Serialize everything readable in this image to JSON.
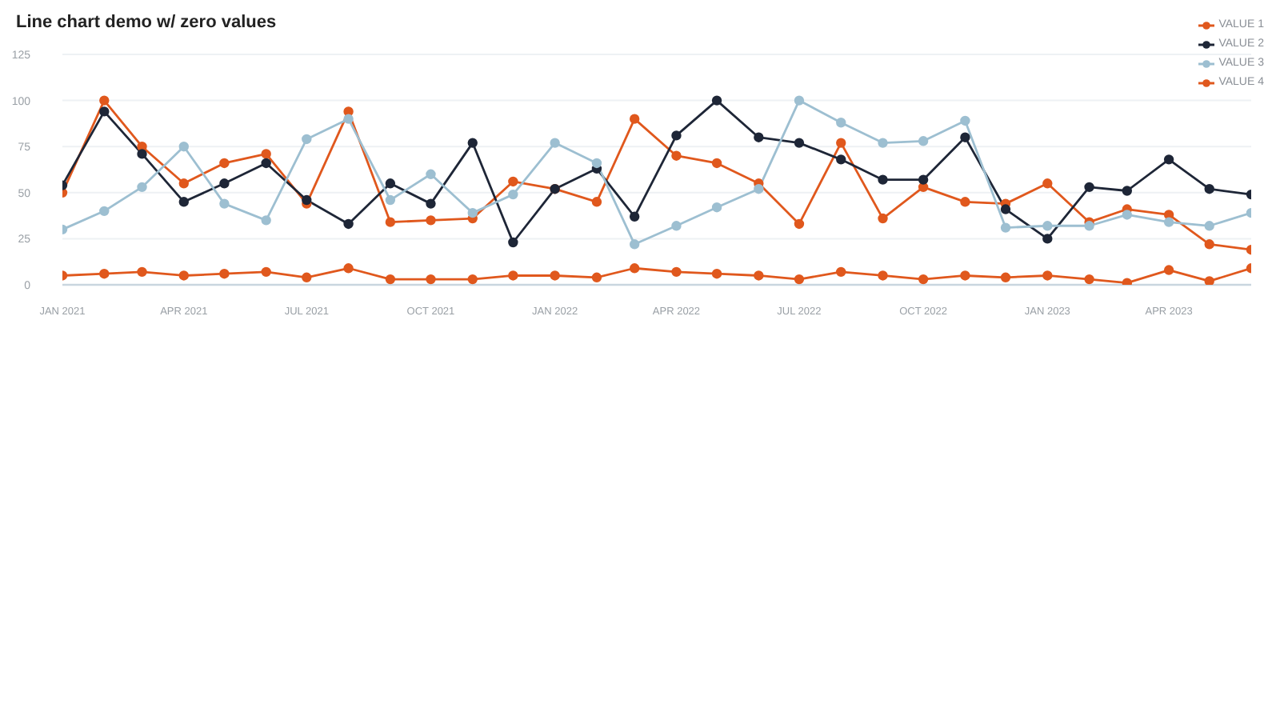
{
  "chart_data": {
    "type": "line",
    "title": "Line chart demo w/ zero values",
    "x": [
      "2021-01",
      "2021-02",
      "2021-03",
      "2021-04",
      "2021-05",
      "2021-06",
      "2021-07",
      "2021-08",
      "2021-09",
      "2021-10",
      "2021-11",
      "2021-12",
      "2022-01",
      "2022-02",
      "2022-03",
      "2022-04",
      "2022-05",
      "2022-06",
      "2022-07",
      "2022-08",
      "2022-09",
      "2022-10",
      "2022-11",
      "2022-12",
      "2023-01",
      "2023-02",
      "2023-03",
      "2023-04",
      "2023-05",
      "2023-06"
    ],
    "xlim": [
      "2021-01",
      "2023-06"
    ],
    "xticks": [
      {
        "value": "2021-01",
        "label": "JAN 2021"
      },
      {
        "value": "2021-04",
        "label": "APR 2021"
      },
      {
        "value": "2021-07",
        "label": "JUL 2021"
      },
      {
        "value": "2021-10",
        "label": "OCT 2021"
      },
      {
        "value": "2022-01",
        "label": "JAN 2022"
      },
      {
        "value": "2022-04",
        "label": "APR 2022"
      },
      {
        "value": "2022-07",
        "label": "JUL 2022"
      },
      {
        "value": "2022-10",
        "label": "OCT 2022"
      },
      {
        "value": "2023-01",
        "label": "JAN 2023"
      },
      {
        "value": "2023-04",
        "label": "APR 2023"
      }
    ],
    "ylim": [
      0,
      125
    ],
    "yticks": [
      0,
      25,
      50,
      75,
      100,
      125
    ],
    "grid": "y",
    "legend": "top right",
    "marker": "circle",
    "line_style": "solid",
    "series": [
      {
        "name": "VALUE 1",
        "color": "#e0581d",
        "values": [
          50,
          100,
          75,
          55,
          66,
          71,
          44,
          94,
          34,
          35,
          36,
          56,
          52,
          45,
          90,
          70,
          66,
          55,
          33,
          77,
          36,
          53,
          45,
          44,
          55,
          34,
          41,
          38,
          22,
          19
        ]
      },
      {
        "name": "VALUE 2",
        "color": "#1e2637",
        "values": [
          54,
          94,
          71,
          45,
          55,
          66,
          46,
          33,
          55,
          44,
          77,
          23,
          52,
          63,
          37,
          81,
          100,
          80,
          77,
          68,
          57,
          57,
          80,
          41,
          25,
          53,
          51,
          68,
          52,
          49
        ]
      },
      {
        "name": "VALUE 3",
        "color": "#9dbfd1",
        "values": [
          30,
          40,
          53,
          75,
          44,
          35,
          79,
          90,
          46,
          60,
          39,
          49,
          77,
          66,
          22,
          32,
          42,
          52,
          100,
          88,
          77,
          78,
          89,
          31,
          32,
          32,
          38,
          34,
          32,
          39
        ]
      },
      {
        "name": "VALUE 4",
        "color": "#e0581d",
        "values": [
          5,
          6,
          7,
          5,
          6,
          7,
          4,
          9,
          3,
          3,
          3,
          5,
          5,
          4,
          9,
          7,
          6,
          5,
          3,
          7,
          5,
          3,
          5,
          4,
          5,
          3,
          1,
          8,
          2,
          9
        ]
      }
    ]
  }
}
